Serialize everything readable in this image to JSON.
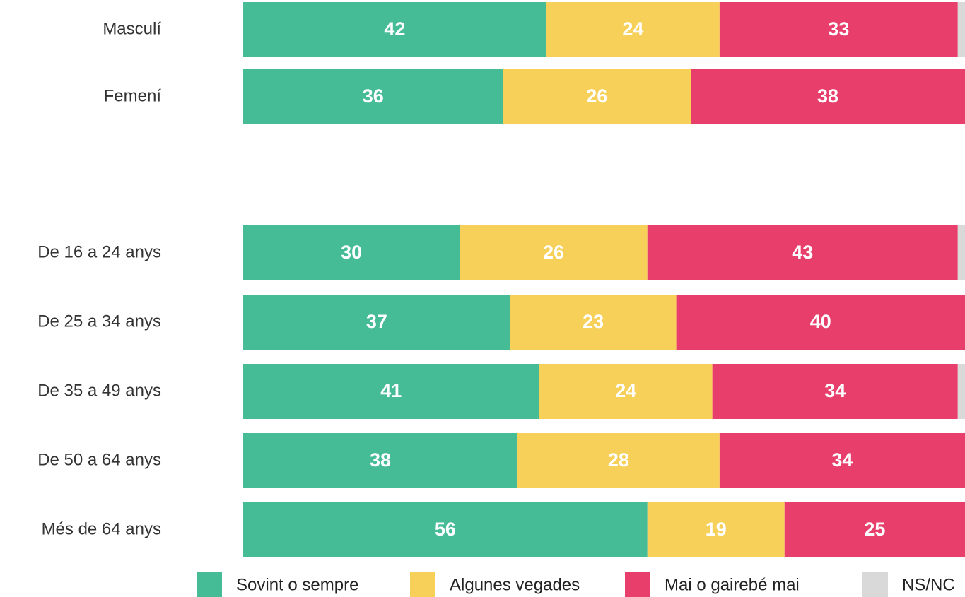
{
  "chart_data": {
    "type": "stacked_barh",
    "categories": [
      "Masculí",
      "Femení",
      null,
      "De 16 a 24 anys",
      "De 25 a 34 anys",
      "De 35 a 49 anys",
      "De 50 a 64 anys",
      "Més de 64 anys"
    ],
    "series": [
      {
        "name": "Sovint o sempre",
        "color": "#45bb96",
        "values": [
          42,
          36,
          null,
          30,
          37,
          41,
          38,
          56
        ]
      },
      {
        "name": "Algunes vegades",
        "color": "#f7d05a",
        "values": [
          24,
          26,
          null,
          26,
          23,
          24,
          28,
          19
        ]
      },
      {
        "name": "Mai o gairebé mai",
        "color": "#e83e6c",
        "values": [
          33,
          38,
          null,
          43,
          40,
          34,
          34,
          25
        ]
      },
      {
        "name": "NS/NC",
        "color": "#d9d9d9",
        "values": [
          1,
          0,
          null,
          1,
          0,
          1,
          0,
          0
        ]
      }
    ],
    "xlim": [
      0,
      100
    ],
    "legend": "bottom"
  }
}
